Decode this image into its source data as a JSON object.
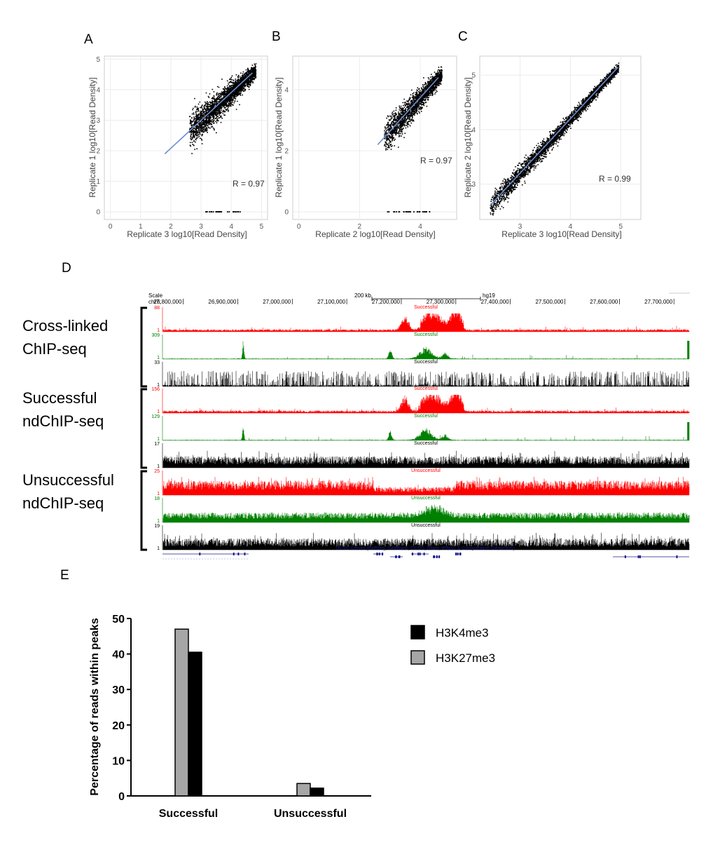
{
  "panels": {
    "a": "A",
    "b": "B",
    "c": "C",
    "d": "D",
    "e": "E"
  },
  "colors": {
    "points": "#000000",
    "fit": "#6d8fcf",
    "red": "#ff0000",
    "green": "#008000",
    "black": "#000000",
    "gray": "#a6a6a6"
  },
  "chart_data": [
    {
      "type": "scatter",
      "id": "A",
      "xlabel": "Replicate 3 log10[Read Density]",
      "ylabel": "Replicate 1 log10[Read Density]",
      "xlim": [
        -0.2,
        5.2
      ],
      "ylim": [
        -0.25,
        5.1
      ],
      "xticks": [
        0,
        1,
        2,
        3,
        4,
        5
      ],
      "yticks": [
        0,
        1,
        2,
        3,
        4,
        5
      ],
      "annotation": "R = 0.97",
      "fit": {
        "x": [
          1.8,
          4.7
        ],
        "y": [
          1.9,
          4.55
        ]
      },
      "cloud": {
        "x_range": [
          2.6,
          4.8
        ],
        "center": [
          3.55,
          3.25
        ]
      },
      "zero_row": {
        "x_range": [
          2.9,
          4.3
        ],
        "y": 0
      }
    },
    {
      "type": "scatter",
      "id": "B",
      "xlabel": "Replicate 2 log10[Read Density]",
      "ylabel": "Replicate 1 log10[Read Density]",
      "xlim": [
        -0.2,
        5.2
      ],
      "ylim": [
        -0.25,
        5.1
      ],
      "xticks": [
        0,
        2,
        4
      ],
      "yticks": [
        0,
        2,
        4
      ],
      "annotation": "R = 0.97",
      "fit": {
        "x": [
          2.6,
          4.6
        ],
        "y": [
          2.2,
          4.4
        ]
      },
      "cloud": {
        "x_range": [
          2.8,
          4.7
        ],
        "center": [
          3.6,
          3.2
        ]
      },
      "zero_row": {
        "x_range": [
          2.9,
          4.3
        ],
        "y": 0
      }
    },
    {
      "type": "scatter",
      "id": "C",
      "xlabel": "Replicate 3 log10[Read Density]",
      "ylabel": "Replicate 2 log10[Read Density]",
      "xlim": [
        2.2,
        5.4
      ],
      "ylim": [
        2.35,
        5.35
      ],
      "xticks": [
        3,
        4,
        5
      ],
      "yticks": [
        3,
        4,
        5
      ],
      "annotation": "R = 0.99",
      "fit": {
        "x": [
          2.4,
          4.95
        ],
        "y": [
          2.6,
          5.15
        ]
      },
      "cloud": {
        "x_range": [
          2.4,
          4.95
        ],
        "center": [
          3.6,
          3.7
        ]
      }
    },
    {
      "type": "area",
      "id": "D",
      "scale_label": "Scale",
      "scale_value": "200 kb",
      "assembly": "hg19",
      "chrom": "chr7:",
      "x_positions": [
        "26,800,000",
        "26,900,000",
        "27,000,000",
        "27,100,000",
        "27,200,000",
        "27,300,000",
        "27,400,000",
        "27,500,000",
        "27,600,000",
        "27,700,000"
      ],
      "x_values": [
        26800000,
        26900000,
        27000000,
        27100000,
        27200000,
        27300000,
        27400000,
        27500000,
        27600000,
        27700000
      ],
      "x_range": [
        26762000,
        27728000
      ],
      "groups": [
        {
          "label": [
            "Cross-linked",
            "ChIP-seq"
          ],
          "tracks": [
            {
              "name": "Successful",
              "color": "red",
              "max": "88",
              "min": "1",
              "profile": "peaks_red"
            },
            {
              "name": "Successful",
              "color": "green",
              "max": "309",
              "min": "1",
              "profile": "peaks_green"
            },
            {
              "name": "Successful",
              "color": "black",
              "max": "33",
              "min": "1",
              "profile": "sparse_black"
            }
          ]
        },
        {
          "label": [
            "Successful",
            "ndChIP-seq"
          ],
          "tracks": [
            {
              "name": "Successful",
              "color": "red",
              "max": "156",
              "min": "1",
              "profile": "peaks_red"
            },
            {
              "name": "Successful",
              "color": "green",
              "max": "129",
              "min": "1",
              "profile": "peaks_green"
            },
            {
              "name": "Successful",
              "color": "black",
              "max": "17",
              "min": "1",
              "profile": "noise_black"
            }
          ]
        },
        {
          "label": [
            "Unsuccessful",
            "ndChIP-seq"
          ],
          "tracks": [
            {
              "name": "Unsuccessful",
              "color": "red",
              "max": "25",
              "min": "1",
              "profile": "noise_red"
            },
            {
              "name": "Unsuccessful",
              "color": "green",
              "max": "18",
              "min": "1",
              "profile": "noise_green"
            },
            {
              "name": "Unsuccessful",
              "color": "black",
              "max": "19",
              "min": "1",
              "profile": "noise_black"
            }
          ]
        }
      ],
      "genes_label": "UCSC Genes (RefSeq, GenBank, CCDS, Rfam, tRNAs & Comparative Genomics)"
    },
    {
      "type": "bar",
      "id": "E",
      "categories": [
        "Successful",
        "Unsuccessful"
      ],
      "series": [
        {
          "name": "H3K27me3",
          "color": "gray",
          "values": [
            47,
            3.5
          ]
        },
        {
          "name": "H3K4me3",
          "color": "black",
          "values": [
            40.5,
            2.2
          ]
        }
      ],
      "legend_order": [
        "H3K4me3",
        "H3K27me3"
      ],
      "ylabel": "Percentage of reads within peaks",
      "ylim": [
        0,
        50
      ],
      "yticks": [
        0,
        10,
        20,
        30,
        40,
        50
      ]
    }
  ]
}
